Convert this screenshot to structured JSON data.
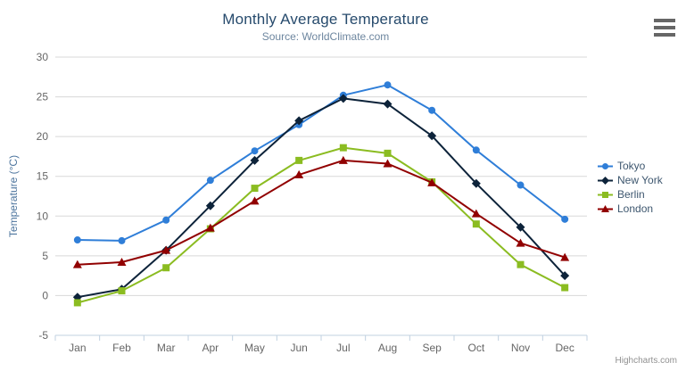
{
  "chart_data": {
    "type": "line",
    "title": "Monthly Average Temperature",
    "subtitle": "Source: WorldClimate.com",
    "categories": [
      "Jan",
      "Feb",
      "Mar",
      "Apr",
      "May",
      "Jun",
      "Jul",
      "Aug",
      "Sep",
      "Oct",
      "Nov",
      "Dec"
    ],
    "xlabel": "",
    "ylabel": "Temperature (°C)",
    "ylim": [
      -5,
      30
    ],
    "ytick_interval": 5,
    "ytick_labels": [
      "-5",
      "0",
      "5",
      "10",
      "15",
      "20",
      "25",
      "30"
    ],
    "grid": true,
    "legend_position": "right",
    "series": [
      {
        "name": "Tokyo",
        "color": "#2f7ed8",
        "marker": "circle",
        "values": [
          7.0,
          6.9,
          9.5,
          14.5,
          18.2,
          21.5,
          25.2,
          26.5,
          23.3,
          18.3,
          13.9,
          9.6
        ]
      },
      {
        "name": "New York",
        "color": "#0d233a",
        "marker": "diamond",
        "values": [
          -0.2,
          0.8,
          5.7,
          11.3,
          17.0,
          22.0,
          24.8,
          24.1,
          20.1,
          14.1,
          8.6,
          2.5
        ]
      },
      {
        "name": "Berlin",
        "color": "#8bbc21",
        "marker": "square",
        "values": [
          -0.9,
          0.6,
          3.5,
          8.4,
          13.5,
          17.0,
          18.6,
          17.9,
          14.3,
          9.0,
          3.9,
          1.0
        ]
      },
      {
        "name": "London",
        "color": "#910000",
        "marker": "triangle",
        "values": [
          3.9,
          4.2,
          5.7,
          8.5,
          11.9,
          15.2,
          17.0,
          16.6,
          14.2,
          10.3,
          6.6,
          4.8
        ]
      }
    ]
  },
  "credits": {
    "label": "Highcharts.com"
  },
  "toolbar": {
    "menu_icon": "hamburger-icon"
  },
  "colors": {
    "grid": "#d8d8d8",
    "axis_line": "#c0d0e0",
    "tick": "#c0d0e0",
    "axis_label": "#666666",
    "axis_title": "#4d759e",
    "title": "#274b6d",
    "subtitle": "#6d869f",
    "legend_text": "#3e576f",
    "credit": "#909090",
    "menu_icon": "#666666",
    "background": "#ffffff"
  }
}
